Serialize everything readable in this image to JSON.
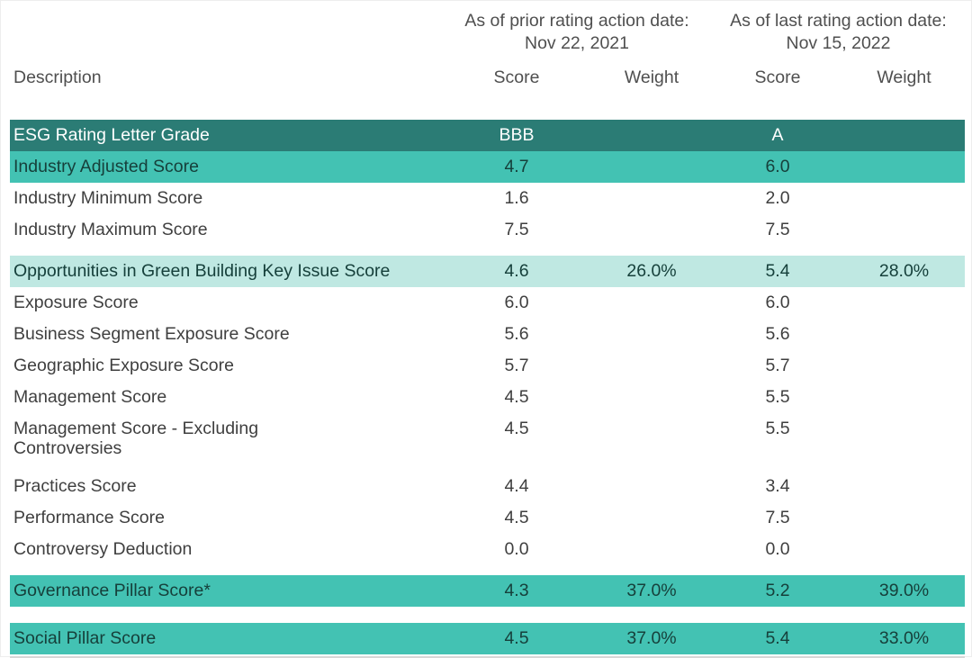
{
  "colors": {
    "row_dark": "#2B7C75",
    "row_medium": "#43C2B3",
    "row_light": "#BFE8E2",
    "text_on_dark": "#FFFFFF",
    "text_on_teal": "#16403B",
    "text_plain": "#3F3F3F",
    "text_header": "#4F4F4F"
  },
  "table": {
    "col_groups": [
      {
        "line1": "As of prior rating action date:",
        "line2": "Nov 22, 2021"
      },
      {
        "line1": "As of last rating action date:",
        "line2": "Nov 15, 2022"
      }
    ],
    "col_headers": {
      "description": "Description",
      "score_prior": "Score",
      "weight_prior": "Weight",
      "score_last": "Score",
      "weight_last": "Weight"
    },
    "rows": [
      {
        "label": "ESG Rating Letter Grade",
        "style": "dark",
        "score1": "BBB",
        "weight1": "",
        "score2": "A",
        "weight2": ""
      },
      {
        "label": "Industry Adjusted Score",
        "style": "medium",
        "score1": "4.7",
        "weight1": "",
        "score2": "6.0",
        "weight2": ""
      },
      {
        "label": "Industry Minimum Score",
        "style": "plain",
        "score1": "1.6",
        "weight1": "",
        "score2": "2.0",
        "weight2": ""
      },
      {
        "label": "Industry Maximum Score",
        "style": "plain",
        "score1": "7.5",
        "weight1": "",
        "score2": "7.5",
        "weight2": "",
        "gap_after": "small"
      },
      {
        "label": "Opportunities in Green Building Key Issue Score",
        "style": "light",
        "score1": "4.6",
        "weight1": "26.0%",
        "score2": "5.4",
        "weight2": "28.0%"
      },
      {
        "label": "Exposure Score",
        "style": "plain",
        "score1": "6.0",
        "weight1": "",
        "score2": "6.0",
        "weight2": ""
      },
      {
        "label": "Business Segment Exposure Score",
        "style": "plain",
        "score1": "5.6",
        "weight1": "",
        "score2": "5.6",
        "weight2": ""
      },
      {
        "label": "Geographic Exposure Score",
        "style": "plain",
        "score1": "5.7",
        "weight1": "",
        "score2": "5.7",
        "weight2": ""
      },
      {
        "label": "Management Score",
        "style": "plain",
        "score1": "4.5",
        "weight1": "",
        "score2": "5.5",
        "weight2": ""
      },
      {
        "label": "Management Score - Excluding Controversies",
        "style": "plain",
        "two_line": true,
        "score1": "4.5",
        "weight1": "",
        "score2": "5.5",
        "weight2": ""
      },
      {
        "label": "Practices Score",
        "style": "plain",
        "score1": "4.4",
        "weight1": "",
        "score2": "3.4",
        "weight2": ""
      },
      {
        "label": "Performance Score",
        "style": "plain",
        "score1": "4.5",
        "weight1": "",
        "score2": "7.5",
        "weight2": ""
      },
      {
        "label": "Controversy Deduction",
        "style": "plain",
        "score1": "0.0",
        "weight1": "",
        "score2": "0.0",
        "weight2": "",
        "gap_after": "small"
      },
      {
        "label": "Governance Pillar Score*",
        "style": "medium",
        "score1": "4.3",
        "weight1": "37.0%",
        "score2": "5.2",
        "weight2": "39.0%",
        "gap_after": "large"
      },
      {
        "label": "Social Pillar Score",
        "style": "medium",
        "score1": "4.5",
        "weight1": "37.0%",
        "score2": "5.4",
        "weight2": "33.0%"
      }
    ]
  }
}
